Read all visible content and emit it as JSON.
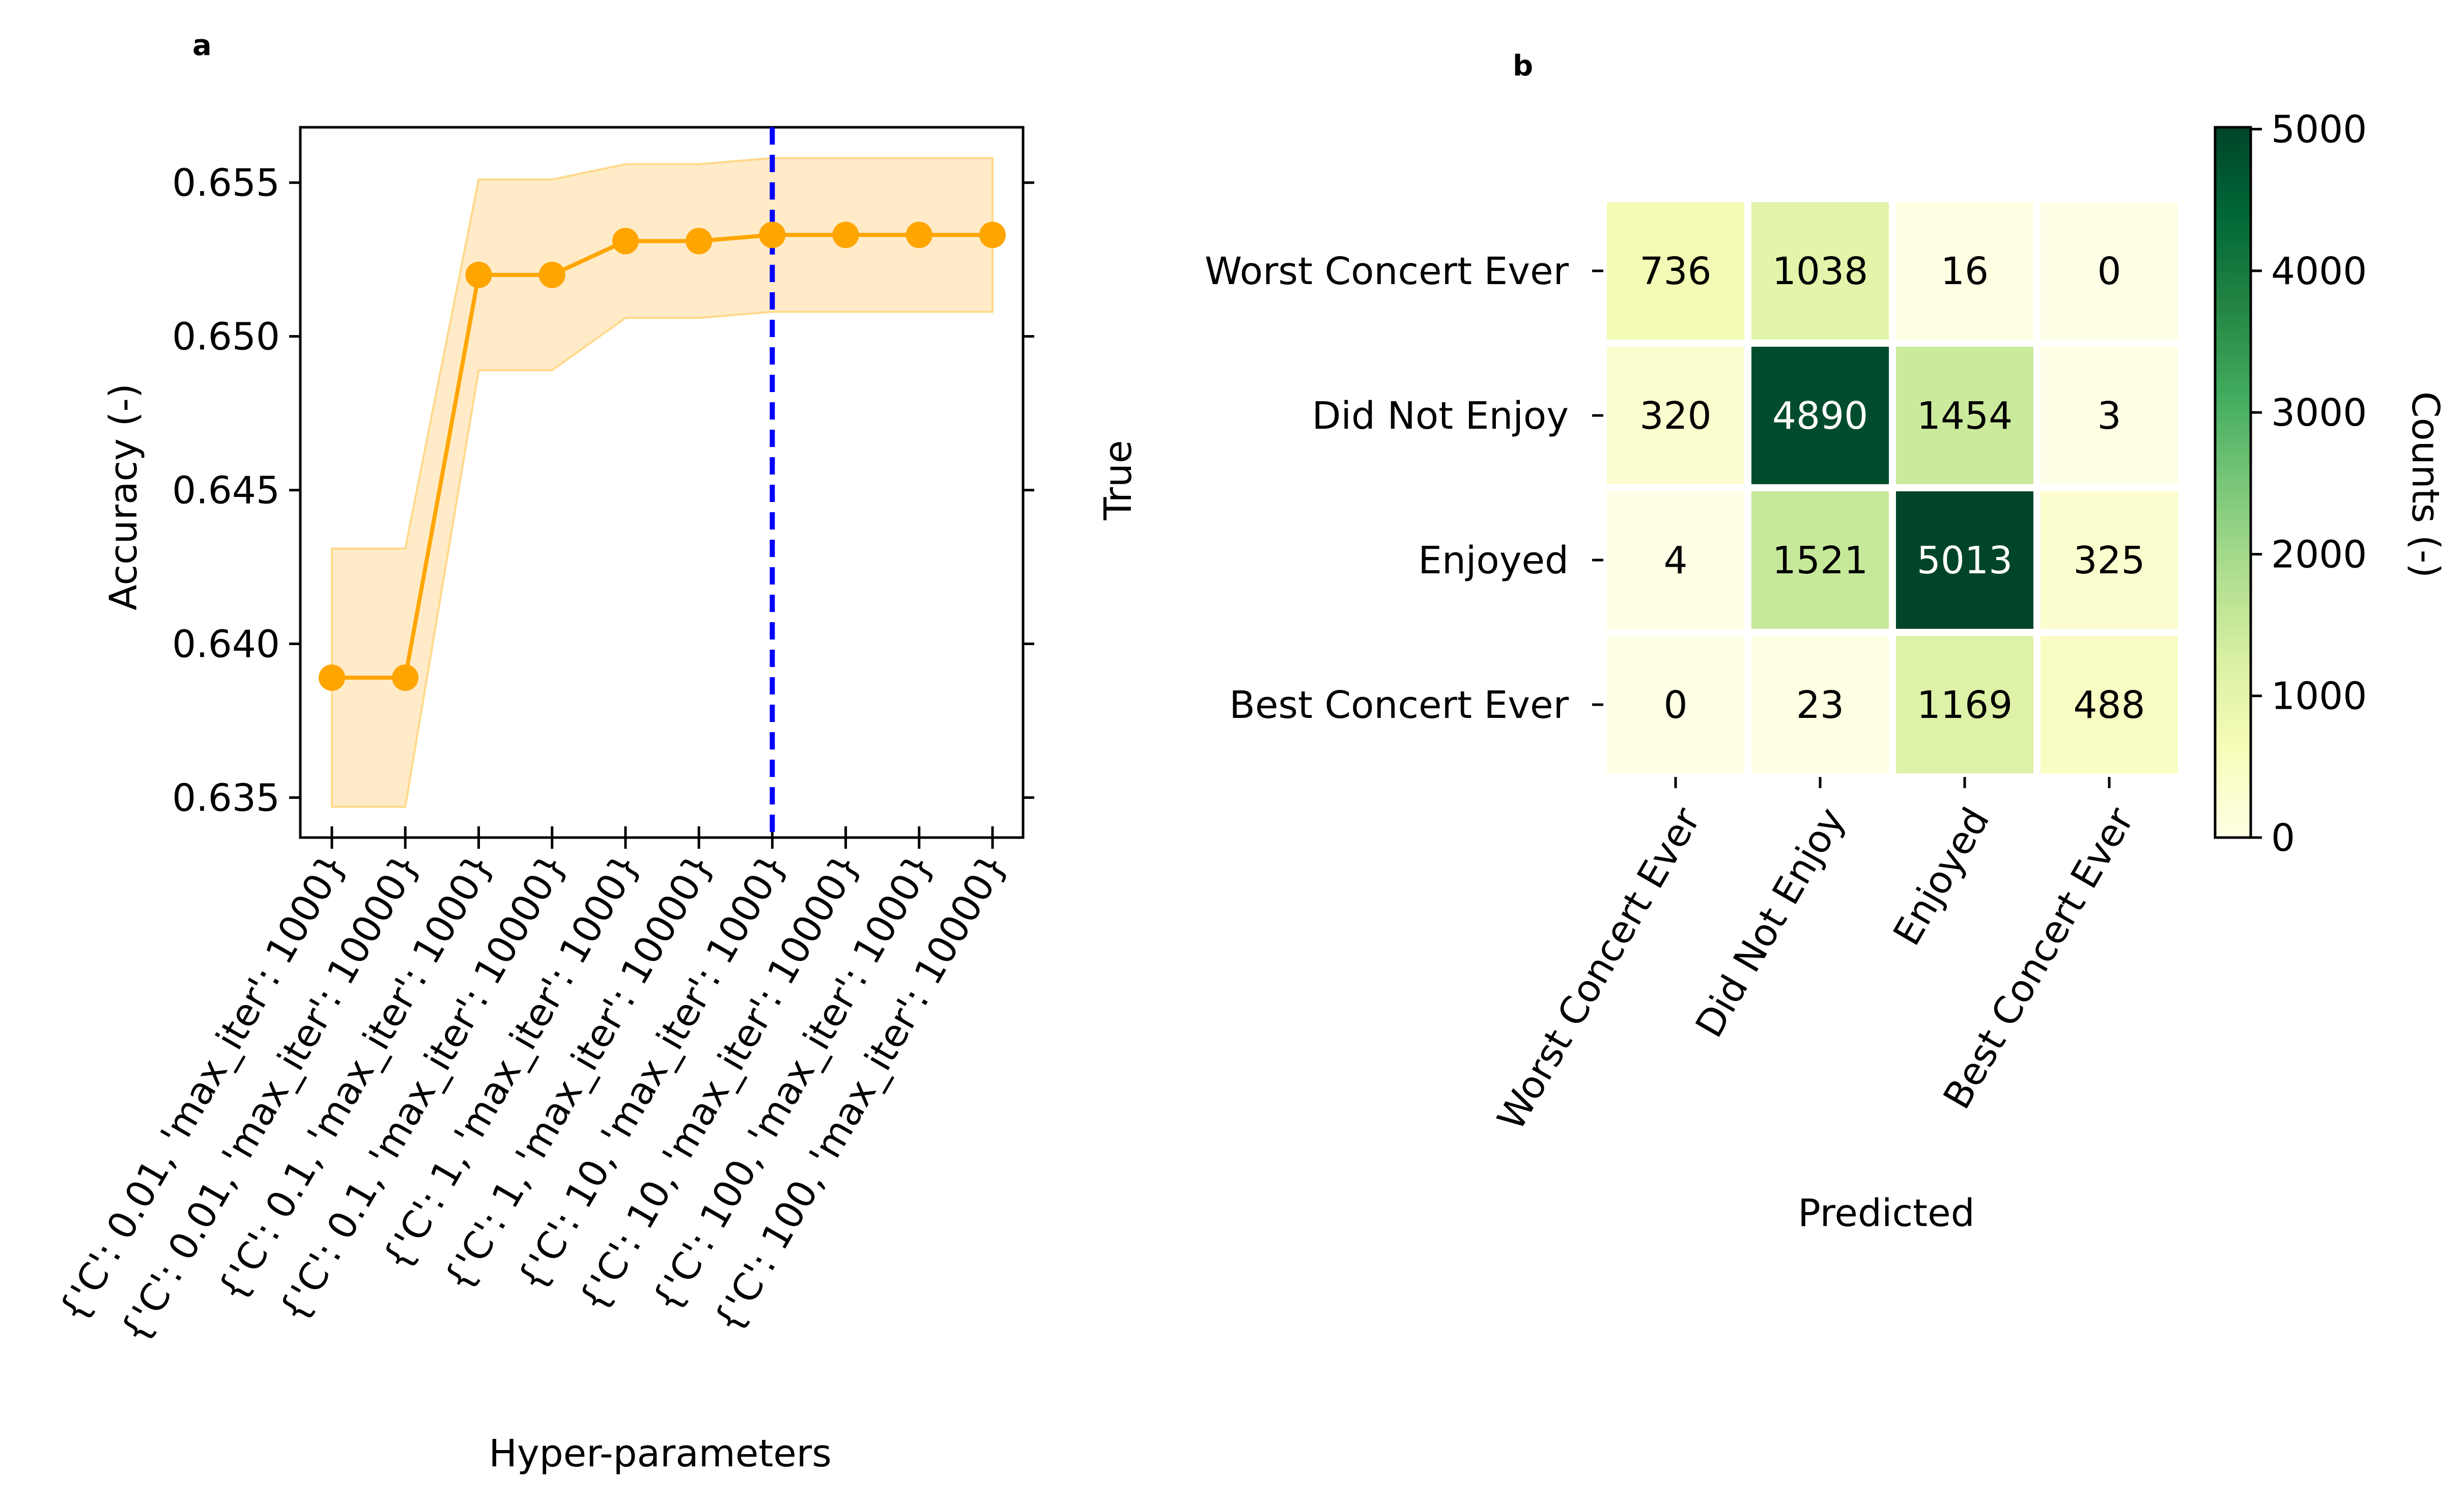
{
  "colors": {
    "line": "#ffa500",
    "band": "#ffebc8",
    "band_edge": "#ffd98a",
    "best_marker": "#0000ff",
    "axes": "#000000",
    "colormap": "YlGn",
    "light_text": "#ffffff",
    "dark_text": "#000000"
  },
  "chart_data": [
    {
      "panel": "a",
      "type": "line",
      "xlabel": "Hyper-parameters",
      "ylabel": "Accuracy (-)",
      "categories": [
        "{'C': 0.01, 'max_iter': 1000}",
        "{'C': 0.01, 'max_iter': 10000}",
        "{'C': 0.1, 'max_iter': 1000}",
        "{'C': 0.1, 'max_iter': 10000}",
        "{'C': 1, 'max_iter': 1000}",
        "{'C': 1, 'max_iter': 10000}",
        "{'C': 10, 'max_iter': 1000}",
        "{'C': 10, 'max_iter': 10000}",
        "{'C': 100, 'max_iter': 1000}",
        "{'C': 100, 'max_iter': 10000}"
      ],
      "values": [
        0.6389,
        0.6389,
        0.652,
        0.652,
        0.6531,
        0.6531,
        0.6533,
        0.6533,
        0.6533,
        0.6533
      ],
      "band_upper": [
        0.6431,
        0.6431,
        0.6551,
        0.6551,
        0.6556,
        0.6556,
        0.6558,
        0.6558,
        0.6558,
        0.6558
      ],
      "band_lower": [
        0.6347,
        0.6347,
        0.6489,
        0.6489,
        0.6506,
        0.6506,
        0.6508,
        0.6508,
        0.6508,
        0.6508
      ],
      "best_index": 6,
      "yticks": [
        0.635,
        0.64,
        0.645,
        0.65,
        0.655
      ],
      "ytick_labels": [
        "0.635",
        "0.640",
        "0.645",
        "0.650",
        "0.655"
      ],
      "ylim": [
        0.6337,
        0.6568
      ],
      "grid": false
    },
    {
      "panel": "b",
      "type": "heatmap",
      "xlabel": "Predicted",
      "ylabel": "True",
      "x_categories": [
        "Worst Concert Ever",
        "Did Not Enjoy",
        "Enjoyed",
        "Best Concert Ever"
      ],
      "y_categories": [
        "Worst Concert Ever",
        "Did Not Enjoy",
        "Enjoyed",
        "Best Concert Ever"
      ],
      "values": [
        [
          736,
          1038,
          16,
          0
        ],
        [
          320,
          4890,
          1454,
          3
        ],
        [
          4,
          1521,
          5013,
          325
        ],
        [
          0,
          23,
          1169,
          488
        ]
      ],
      "colorbar": {
        "label": "Counts (-)",
        "min": 0,
        "max": 5013,
        "ticks": [
          0,
          1000,
          2000,
          3000,
          4000,
          5000
        ],
        "tick_labels": [
          "0",
          "1000",
          "2000",
          "3000",
          "4000",
          "5000"
        ]
      }
    }
  ]
}
